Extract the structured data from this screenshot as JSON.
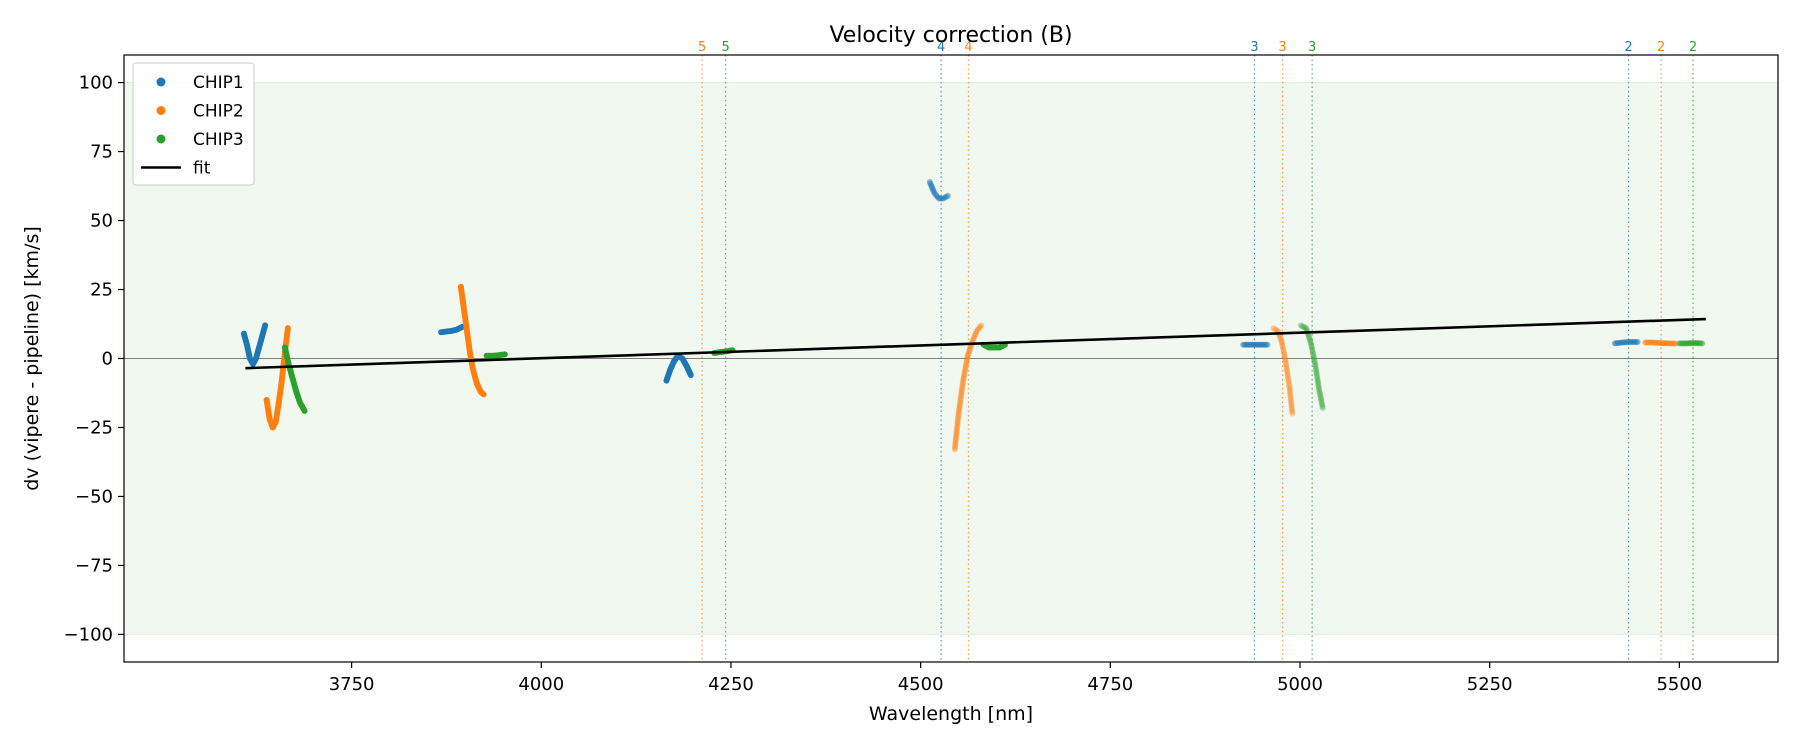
{
  "chart_data": {
    "type": "scatter",
    "title": "Velocity correction (B)",
    "xlabel": "Wavelength [nm]",
    "ylabel": "dv (vipere - pipeline) [km/s]",
    "xlim": [
      3450,
      5630
    ],
    "ylim": [
      -110,
      110
    ],
    "xticks": [
      3750,
      4000,
      4250,
      4500,
      4750,
      5000,
      5250,
      5500
    ],
    "xtick_labels": [
      "3750",
      "4000",
      "4250",
      "4500",
      "4750",
      "5000",
      "5250",
      "5500"
    ],
    "yticks": [
      -100,
      -75,
      -50,
      -25,
      0,
      25,
      50,
      75,
      100
    ],
    "ytick_labels": [
      "−100",
      "−75",
      "−50",
      "−25",
      "0",
      "25",
      "50",
      "75",
      "100"
    ],
    "band": {
      "y0": -100,
      "y1": 100,
      "color": "#2ca02c"
    },
    "zero_line": true,
    "grid": false,
    "legend_position": "upper-left",
    "legend": [
      {
        "label": "CHIP1",
        "kind": "marker",
        "color": "#1f77b4"
      },
      {
        "label": "CHIP2",
        "kind": "marker",
        "color": "#ff7f0e"
      },
      {
        "label": "CHIP3",
        "kind": "marker",
        "color": "#2ca02c"
      },
      {
        "label": "fit",
        "kind": "line",
        "color": "#000000"
      }
    ],
    "fit": {
      "x": [
        3610,
        5535
      ],
      "y": [
        -3.5,
        14.3
      ],
      "color": "#000000"
    },
    "order_markers": [
      {
        "x": 4212,
        "label": "5",
        "color": "#ff7f0e"
      },
      {
        "x": 4243,
        "label": "5",
        "color": "#2ca02c"
      },
      {
        "x": 4527,
        "label": "4",
        "color": "#1f77b4"
      },
      {
        "x": 4563,
        "label": "4",
        "color": "#ff7f0e"
      },
      {
        "x": 4940,
        "label": "3",
        "color": "#1f77b4"
      },
      {
        "x": 4977,
        "label": "3",
        "color": "#ff7f0e"
      },
      {
        "x": 5016,
        "label": "3",
        "color": "#2ca02c"
      },
      {
        "x": 5433,
        "label": "2",
        "color": "#1f77b4"
      },
      {
        "x": 5476,
        "label": "2",
        "color": "#ff7f0e"
      },
      {
        "x": 5518,
        "label": "2",
        "color": "#2ca02c"
      }
    ],
    "segments": [
      {
        "series": "CHIP1",
        "color": "#1f77b4",
        "alpha": 1.0,
        "points": [
          [
            3608,
            9
          ],
          [
            3612,
            5
          ],
          [
            3616,
            0
          ],
          [
            3620,
            -2
          ],
          [
            3624,
            0
          ],
          [
            3628,
            4
          ],
          [
            3632,
            8
          ],
          [
            3636,
            12
          ]
        ]
      },
      {
        "series": "CHIP2",
        "color": "#ff7f0e",
        "alpha": 1.0,
        "points": [
          [
            3638,
            -15
          ],
          [
            3642,
            -22
          ],
          [
            3646,
            -25
          ],
          [
            3650,
            -23
          ],
          [
            3654,
            -16
          ],
          [
            3658,
            -8
          ],
          [
            3662,
            2
          ],
          [
            3666,
            11
          ]
        ]
      },
      {
        "series": "CHIP3",
        "color": "#2ca02c",
        "alpha": 1.0,
        "points": [
          [
            3662,
            4
          ],
          [
            3667,
            -2
          ],
          [
            3672,
            -7
          ],
          [
            3677,
            -12
          ],
          [
            3682,
            -16
          ],
          [
            3688,
            -19
          ]
        ]
      },
      {
        "series": "CHIP1",
        "color": "#1f77b4",
        "alpha": 1.0,
        "points": [
          [
            3868,
            9.5
          ],
          [
            3875,
            9.8
          ],
          [
            3882,
            10
          ],
          [
            3889,
            10.5
          ],
          [
            3896,
            11.5
          ]
        ]
      },
      {
        "series": "CHIP2",
        "color": "#ff7f0e",
        "alpha": 1.0,
        "points": [
          [
            3894,
            26
          ],
          [
            3898,
            18
          ],
          [
            3902,
            10
          ],
          [
            3906,
            2
          ],
          [
            3910,
            -4
          ],
          [
            3915,
            -9
          ],
          [
            3920,
            -12
          ],
          [
            3924,
            -13
          ]
        ]
      },
      {
        "series": "CHIP3",
        "color": "#2ca02c",
        "alpha": 1.0,
        "points": [
          [
            3928,
            1
          ],
          [
            3936,
            1
          ],
          [
            3944,
            1.2
          ],
          [
            3952,
            1.5
          ]
        ]
      },
      {
        "series": "CHIP1",
        "color": "#1f77b4",
        "alpha": 1.0,
        "points": [
          [
            4165,
            -8
          ],
          [
            4170,
            -4
          ],
          [
            4175,
            -1
          ],
          [
            4180,
            1
          ],
          [
            4186,
            0
          ],
          [
            4192,
            -3
          ],
          [
            4197,
            -6
          ]
        ]
      },
      {
        "series": "CHIP3",
        "color": "#2ca02c",
        "alpha": 1.0,
        "points": [
          [
            4228,
            2
          ],
          [
            4236,
            2.3
          ],
          [
            4244,
            2.6
          ],
          [
            4252,
            3
          ]
        ]
      },
      {
        "series": "CHIP1",
        "color": "#1f77b4",
        "alpha": 0.45,
        "points": [
          [
            4512,
            64
          ],
          [
            4518,
            60
          ],
          [
            4524,
            58
          ],
          [
            4530,
            58
          ],
          [
            4536,
            59
          ]
        ]
      },
      {
        "series": "CHIP2",
        "color": "#ff7f0e",
        "alpha": 0.35,
        "points": [
          [
            4545,
            -33
          ],
          [
            4550,
            -20
          ],
          [
            4556,
            -8
          ],
          [
            4562,
            1
          ],
          [
            4568,
            6
          ],
          [
            4574,
            10
          ],
          [
            4580,
            12
          ]
        ]
      },
      {
        "series": "CHIP3",
        "color": "#2ca02c",
        "alpha": 1.0,
        "points": [
          [
            4583,
            5
          ],
          [
            4590,
            4
          ],
          [
            4597,
            4
          ],
          [
            4604,
            4
          ],
          [
            4611,
            5
          ]
        ]
      },
      {
        "series": "CHIP1",
        "color": "#1f77b4",
        "alpha": 0.5,
        "points": [
          [
            4925,
            5
          ],
          [
            4933,
            5
          ],
          [
            4941,
            5
          ],
          [
            4949,
            5
          ],
          [
            4957,
            5
          ]
        ]
      },
      {
        "series": "CHIP2",
        "color": "#ff7f0e",
        "alpha": 0.3,
        "points": [
          [
            4965,
            11
          ],
          [
            4971,
            10
          ],
          [
            4976,
            6
          ],
          [
            4981,
            -1
          ],
          [
            4986,
            -10
          ],
          [
            4990,
            -20
          ]
        ]
      },
      {
        "series": "CHIP3",
        "color": "#2ca02c",
        "alpha": 0.3,
        "points": [
          [
            5001,
            12
          ],
          [
            5008,
            11
          ],
          [
            5014,
            6
          ],
          [
            5020,
            -2
          ],
          [
            5025,
            -11
          ],
          [
            5030,
            -18
          ]
        ]
      },
      {
        "series": "CHIP1",
        "color": "#1f77b4",
        "alpha": 0.5,
        "points": [
          [
            5415,
            5.5
          ],
          [
            5425,
            5.8
          ],
          [
            5435,
            6
          ],
          [
            5445,
            6
          ]
        ]
      },
      {
        "series": "CHIP2",
        "color": "#ff7f0e",
        "alpha": 0.5,
        "points": [
          [
            5455,
            5.8
          ],
          [
            5465,
            5.8
          ],
          [
            5475,
            5.6
          ],
          [
            5485,
            5.5
          ],
          [
            5495,
            5.4
          ]
        ]
      },
      {
        "series": "CHIP3",
        "color": "#2ca02c",
        "alpha": 0.5,
        "points": [
          [
            5500,
            5.5
          ],
          [
            5510,
            5.5
          ],
          [
            5520,
            5.6
          ],
          [
            5530,
            5.5
          ]
        ]
      }
    ]
  }
}
